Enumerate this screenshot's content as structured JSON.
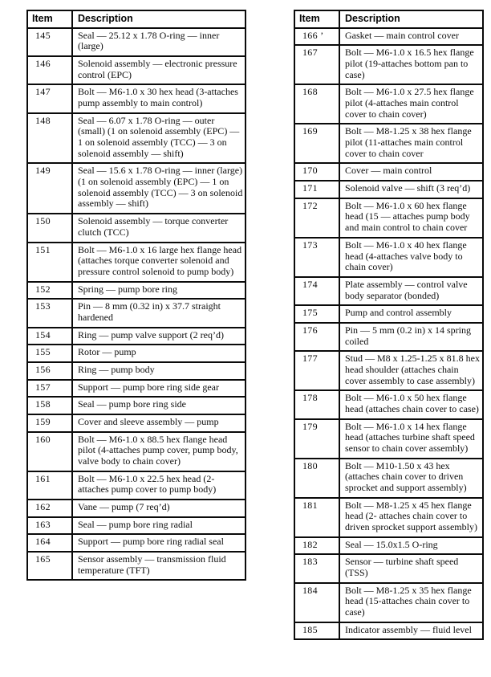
{
  "tables": [
    {
      "name": "parts-list-left",
      "headers": {
        "item": "Item",
        "description": "Description"
      },
      "rows": [
        {
          "item": "145",
          "description": "Seal — 25.12 x 1.78 O-ring — inner (large)"
        },
        {
          "item": "146",
          "description": "Solenoid assembly — electronic pressure control (EPC)"
        },
        {
          "item": "147",
          "description": "Bolt — M6-1.0 x 30 hex head (3-attaches pump assembly to main control)"
        },
        {
          "item": "148",
          "description": "Seal — 6.07 x 1.78 O-ring — outer (small) (1 on solenoid assembly (EPC) — 1 on solenoid assembly (TCC) — 3 on solenoid assembly — shift)"
        },
        {
          "item": "149",
          "description": "Seal — 15.6 x 1.78 O-ring — inner (large) (1 on solenoid assembly (EPC) — 1 on solenoid assembly (TCC) — 3 on solenoid assembly — shift)"
        },
        {
          "item": "150",
          "description": "Solenoid assembly — torque converter clutch (TCC)"
        },
        {
          "item": "151",
          "description": "Bolt — M6-1.0 x 16 large hex flange head (attaches torque converter solenoid and pressure control solenoid to pump body)"
        },
        {
          "item": "152",
          "description": "Spring — pump bore ring"
        },
        {
          "item": "153",
          "description": "Pin — 8 mm (0.32 in) x 37.7 straight hardened"
        },
        {
          "item": "154",
          "description": "Ring — pump valve support (2 req’d)"
        },
        {
          "item": "155",
          "description": "Rotor — pump"
        },
        {
          "item": "156",
          "description": "Ring — pump body"
        },
        {
          "item": "157",
          "description": "Support — pump bore ring side gear"
        },
        {
          "item": "158",
          "description": "Seal — pump bore ring side"
        },
        {
          "item": "159",
          "description": "Cover and sleeve assembly — pump"
        },
        {
          "item": "160",
          "description": "Bolt — M6-1.0 x 88.5 hex flange head pilot (4-attaches pump cover, pump body, valve body to chain cover)"
        },
        {
          "item": "161",
          "description": "Bolt — M6-1.0 x 22.5 hex head (2-attaches pump cover to pump body)"
        },
        {
          "item": "162",
          "description": "Vane — pump (7 req’d)"
        },
        {
          "item": "163",
          "description": "Seal — pump bore ring radial"
        },
        {
          "item": "164",
          "description": "Support — pump bore ring radial seal"
        },
        {
          "item": "165",
          "description": "Sensor assembly — transmission fluid temperature (TFT)"
        }
      ]
    },
    {
      "name": "parts-list-right",
      "headers": {
        "item": "Item",
        "description": "Description"
      },
      "rows": [
        {
          "item": "166 ’",
          "description": "Gasket — main control cover"
        },
        {
          "item": "167",
          "description": "Bolt — M6-1.0 x 16.5 hex flange pilot (19-attaches bottom pan to case)"
        },
        {
          "item": "168",
          "description": "Bolt — M6-1.0 x 27.5 hex flange pilot (4-attaches main control cover to chain cover)"
        },
        {
          "item": "169",
          "description": "Bolt — M8-1.25 x 38 hex flange pilot (11-attaches main control cover to chain cover"
        },
        {
          "item": "170",
          "description": "Cover — main control"
        },
        {
          "item": "171",
          "description": "Solenoid valve — shift (3 req’d)"
        },
        {
          "item": "172",
          "description": "Bolt — M6-1.0 x 60 hex flange head (15 — attaches pump body and main control to chain cover"
        },
        {
          "item": "173",
          "description": "Bolt — M6-1.0 x 40 hex flange head (4-attaches valve body to chain cover)"
        },
        {
          "item": "174",
          "description": "Plate assembly — control valve body separator (bonded)"
        },
        {
          "item": "175",
          "description": "Pump and control assembly"
        },
        {
          "item": "176",
          "description": "Pin — 5 mm (0.2 in) x 14 spring coiled"
        },
        {
          "item": "177",
          "description": "Stud — M8 x 1.25-1.25 x 81.8 hex head shoulder (attaches chain cover assembly to case assembly)"
        },
        {
          "item": "178",
          "description": "Bolt — M6-1.0 x 50 hex flange head (attaches chain cover to case)"
        },
        {
          "item": "179",
          "description": "Bolt — M6-1.0 x 14 hex flange head (attaches turbine shaft speed sensor to chain cover assembly)"
        },
        {
          "item": "180",
          "description": "Bolt — M10-1.50 x 43 hex (attaches chain cover to driven sprocket and support assembly)"
        },
        {
          "item": "181",
          "description": "Bolt — M8-1.25 x 45 hex flange head (2- attaches chain cover to driven sprocket support assembly)"
        },
        {
          "item": "182",
          "description": "Seal — 15.0x1.5 O-ring"
        },
        {
          "item": "183",
          "description": "Sensor — turbine shaft speed (TSS)"
        },
        {
          "item": "184",
          "description": "Bolt — M8-1.25 x 35 hex flange head (15-attaches chain cover to case)"
        },
        {
          "item": "185",
          "description": "Indicator assembly — fluid level"
        }
      ]
    }
  ]
}
